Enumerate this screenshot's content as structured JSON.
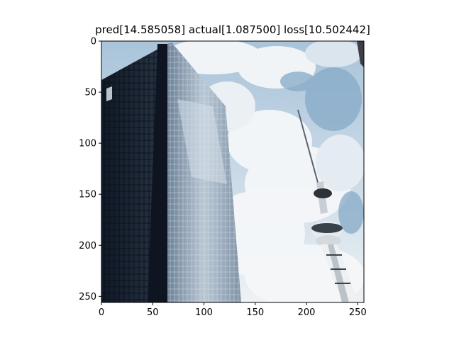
{
  "figure": {
    "title": "pred[14.585058] actual[1.087500] loss[10.502442]"
  },
  "axes": {
    "xlim": [
      0,
      256
    ],
    "ylim": [
      256,
      0
    ],
    "xticks": [
      0,
      50,
      100,
      150,
      200,
      250
    ],
    "yticks": [
      0,
      50,
      100,
      150,
      200,
      250
    ],
    "grid": false
  },
  "image": {
    "subject": "glass office tower beside a tall communications tower under a partly cloudy blue sky",
    "colors": {
      "sky": "#8fb3cf",
      "cloud": "#f4f6f8",
      "glass_dark": "#1a2433",
      "glass_light": "#9fb3c6",
      "tower": "#e8eaec"
    }
  }
}
